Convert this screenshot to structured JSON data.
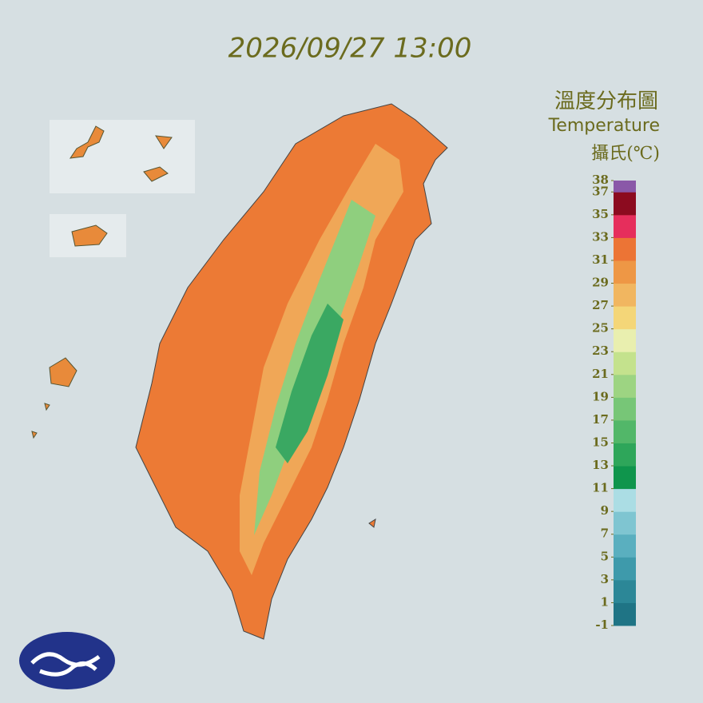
{
  "timestamp": "2026/09/27 13:00",
  "legend": {
    "title_zh": "溫度分布圖",
    "title_en": "Temperature",
    "unit": "攝氏(℃)",
    "ticks": [
      -1,
      1,
      3,
      5,
      7,
      9,
      11,
      13,
      15,
      17,
      19,
      21,
      23,
      25,
      27,
      29,
      31,
      33,
      35,
      37,
      38
    ],
    "colors": [
      "#1f7485",
      "#2c8797",
      "#3e9aab",
      "#5aafbf",
      "#7fc5d1",
      "#abdde4",
      "#0f954c",
      "#2ea65a",
      "#52b769",
      "#77c677",
      "#9dd482",
      "#c4e28d",
      "#e9efaf",
      "#f4d678",
      "#f1b660",
      "#ee9745",
      "#ec7435",
      "#e62e5c",
      "#8c0b1f",
      "#8a58a8"
    ]
  }
}
